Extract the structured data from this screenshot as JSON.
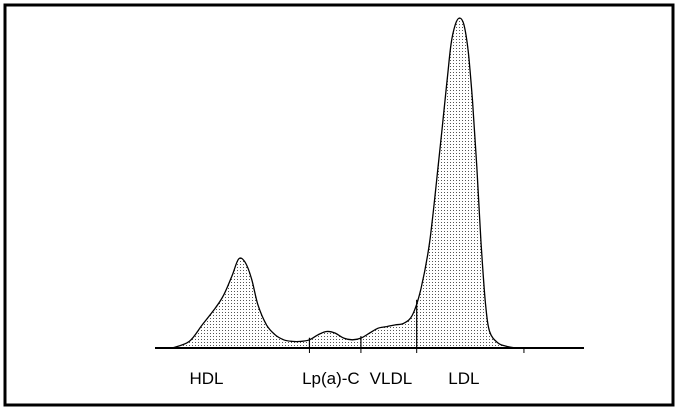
{
  "chart_data": {
    "type": "area",
    "title": "",
    "xlabel": "",
    "ylabel": "",
    "grid": false,
    "legend": "none",
    "fill_pattern": "stippled",
    "colors": {
      "line": "#000000",
      "fill_dots": "#555555",
      "background": "#ffffff"
    },
    "xlim": [
      0,
      100
    ],
    "ylim": [
      0,
      100
    ],
    "fractions": [
      {
        "name": "HDL",
        "label_x": 12
      },
      {
        "name": "Lp(a)-C",
        "label_x": 41
      },
      {
        "name": "VLDL",
        "label_x": 55
      },
      {
        "name": "LDL",
        "label_x": 72
      }
    ],
    "boundaries_x": [
      36,
      48,
      61
    ],
    "axis_ticks_x": [
      36,
      48,
      61,
      86
    ],
    "curve": {
      "x": [
        4,
        8,
        11,
        14,
        16,
        18,
        19.5,
        21,
        22.5,
        24,
        26,
        28,
        30,
        32,
        34,
        36,
        38,
        40,
        42,
        44,
        46,
        48,
        50,
        52,
        54,
        56,
        58,
        60,
        62,
        64,
        66,
        68,
        69,
        70,
        71,
        72,
        73,
        74,
        75,
        76,
        77,
        78,
        80,
        82,
        84
      ],
      "y": [
        0,
        2,
        7,
        12,
        16,
        22,
        27,
        26,
        21,
        13,
        7,
        4,
        2.5,
        2,
        2,
        2.5,
        4,
        5,
        4.5,
        3,
        2.5,
        3,
        4.5,
        6,
        6.5,
        7,
        7.5,
        10,
        18,
        32,
        55,
        80,
        92,
        98,
        100,
        98,
        90,
        75,
        55,
        32,
        14,
        5,
        1.5,
        0.5,
        0
      ]
    }
  }
}
